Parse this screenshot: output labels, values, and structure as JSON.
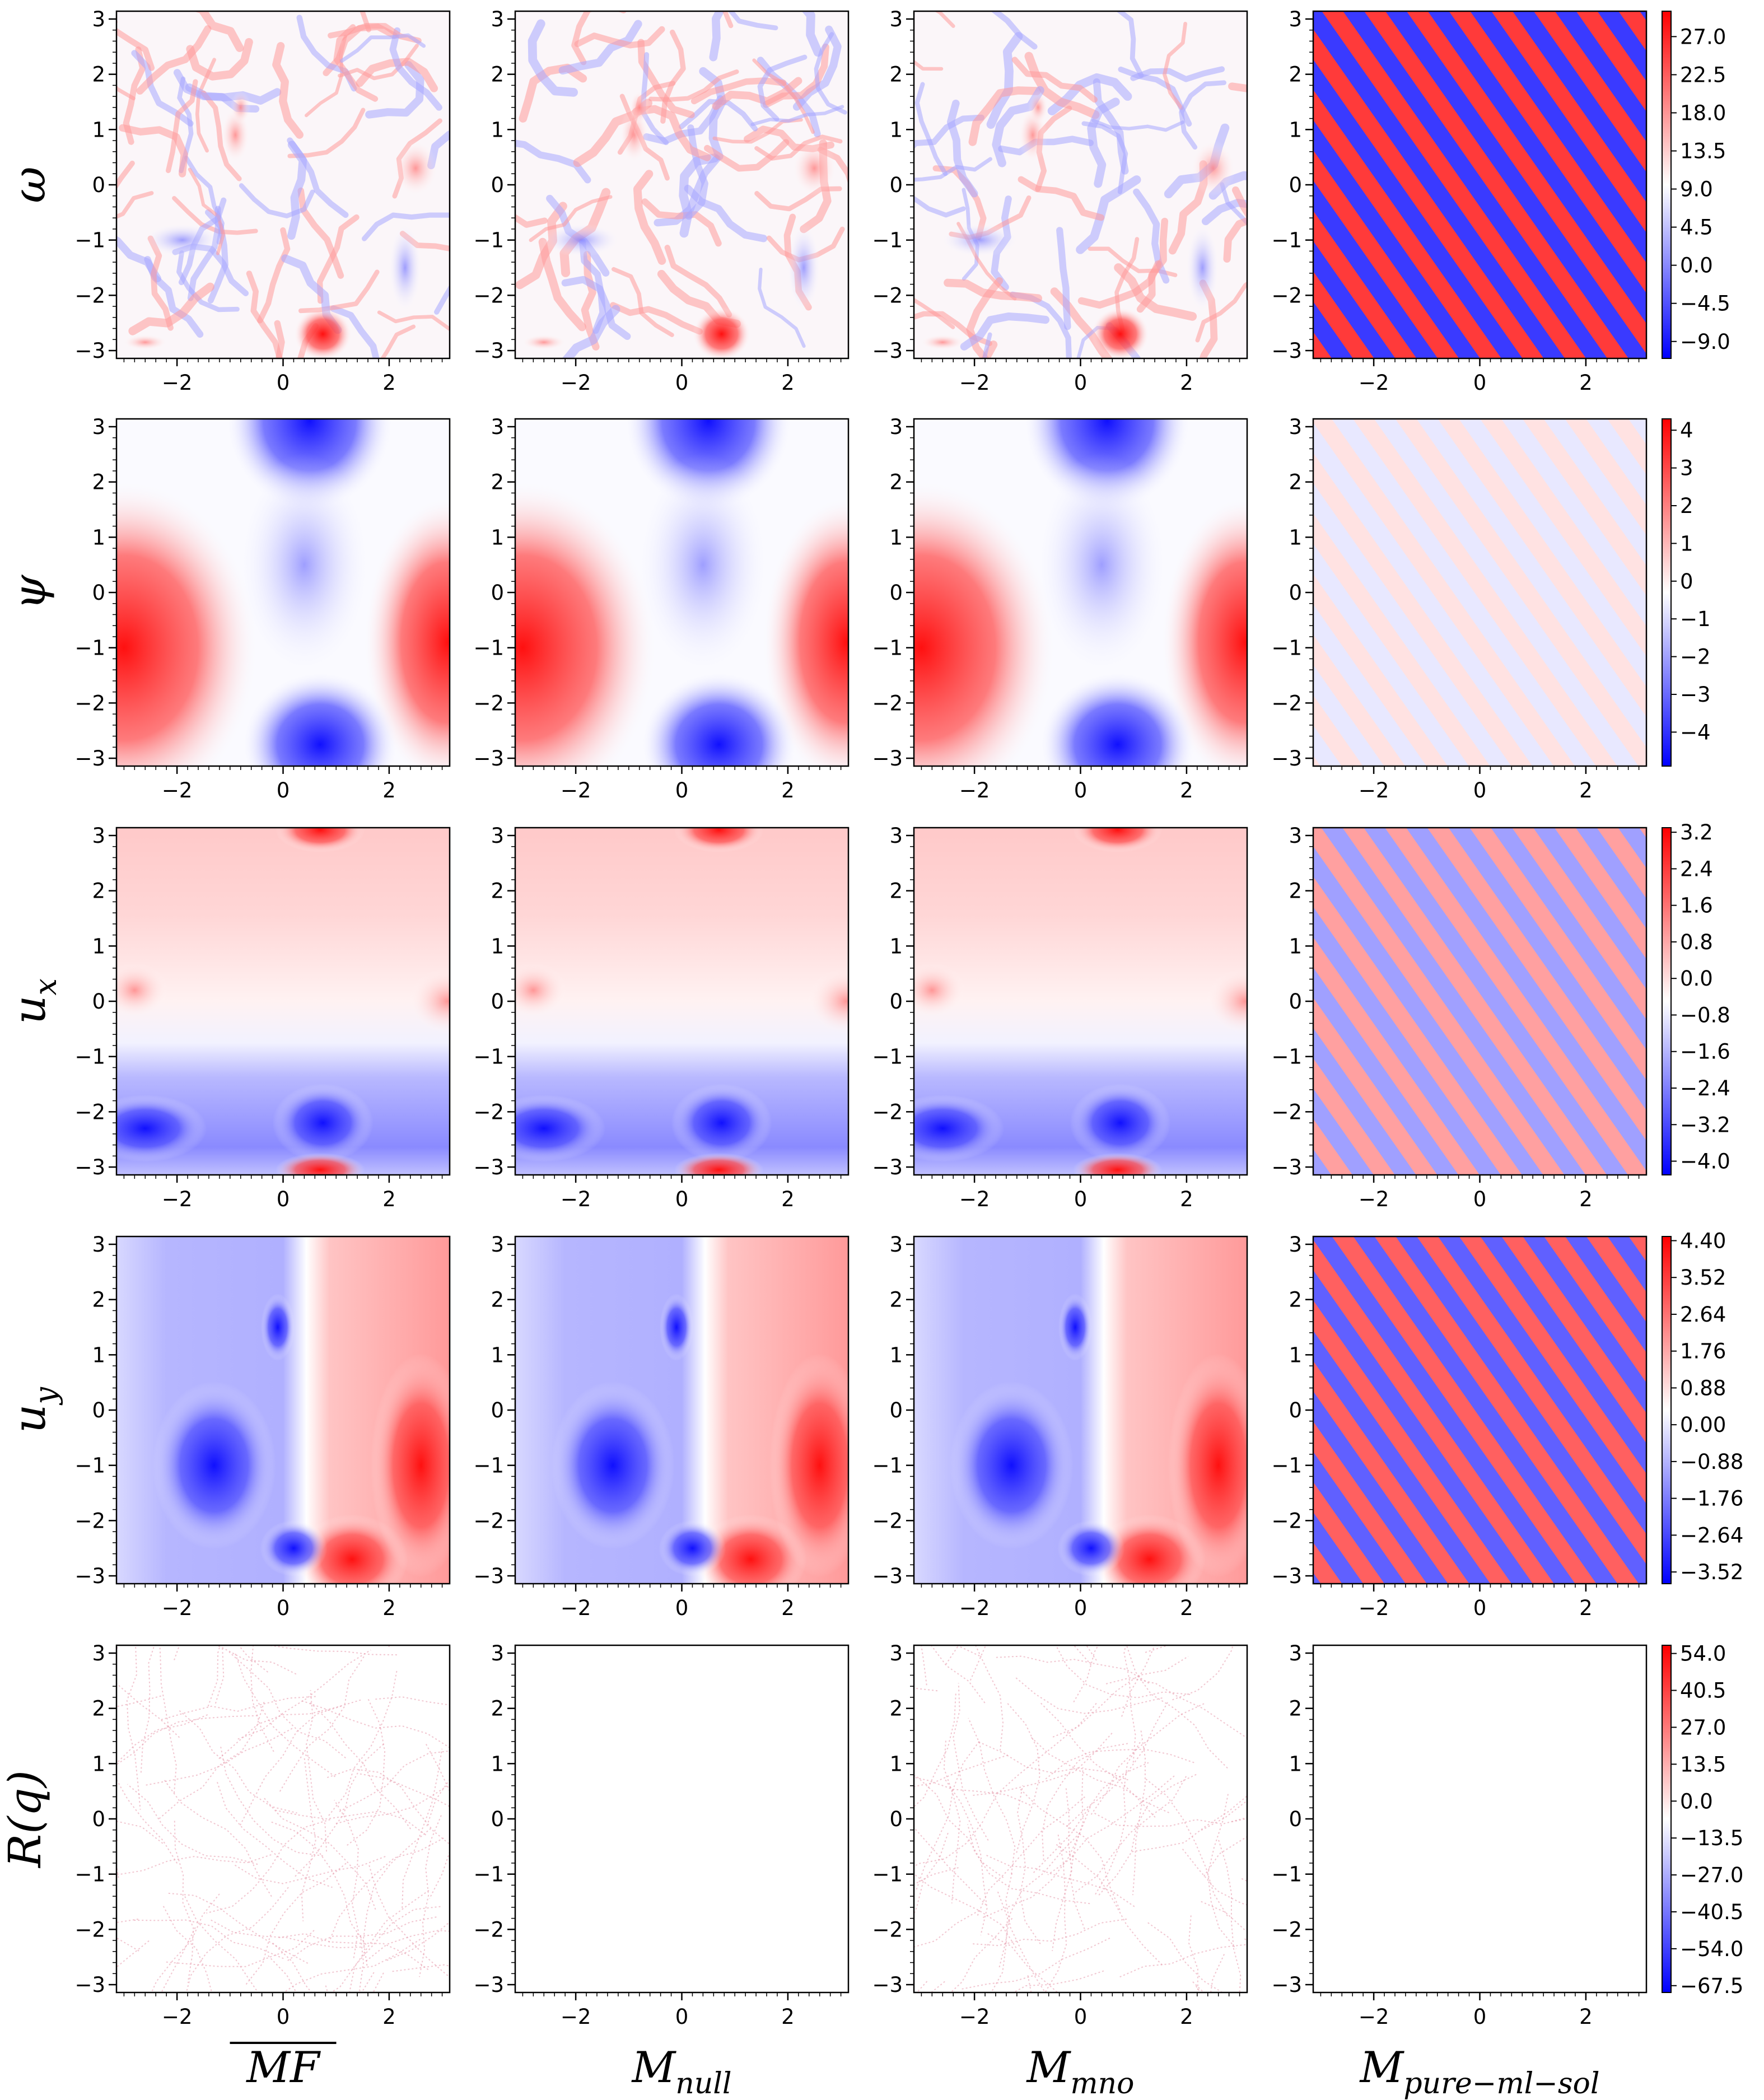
{
  "figure": {
    "columns": [
      {
        "label_main": "MF",
        "label_sub": "",
        "overline": true
      },
      {
        "label_main": "M",
        "label_sub": "null",
        "overline": false
      },
      {
        "label_main": "M",
        "label_sub": "mno",
        "overline": false
      },
      {
        "label_main": "M",
        "label_sub": "pure−ml−sol",
        "overline": false
      }
    ],
    "rows": [
      {
        "label_main": "ω",
        "label_sub": ""
      },
      {
        "label_main": "ψ",
        "label_sub": ""
      },
      {
        "label_main": "u",
        "label_sub": "x"
      },
      {
        "label_main": "u",
        "label_sub": "y"
      },
      {
        "label_main": "R(q)",
        "label_sub": ""
      }
    ]
  },
  "chart_data": [
    {
      "type": "heatmap",
      "row": "omega",
      "x_range": [
        -3.14,
        3.14
      ],
      "y_range": [
        -3.14,
        3.14
      ],
      "xticks": [
        "−2",
        "0",
        "2"
      ],
      "yticks": [
        "−3",
        "−2",
        "−1",
        "0",
        "1",
        "2",
        "3"
      ],
      "colormap": "bwr",
      "colorbar_ticks": [
        "27.0",
        "22.5",
        "18.0",
        "13.5",
        "9.0",
        "4.5",
        "0.0",
        "−4.5",
        "−9.0"
      ],
      "colorbar_range": [
        -11,
        30
      ],
      "panels": [
        "turbulent vorticity field with filaments and a strong positive vortex near (0.7,−2.7)",
        "turbulent vorticity field, noisier",
        "turbulent vorticity field",
        "diagonal stripes of alternating sign"
      ]
    },
    {
      "type": "heatmap",
      "row": "psi",
      "x_range": [
        -3.14,
        3.14
      ],
      "y_range": [
        -3.14,
        3.14
      ],
      "xticks": [
        "−2",
        "0",
        "2"
      ],
      "yticks": [
        "−3",
        "−2",
        "−1",
        "0",
        "1",
        "2",
        "3"
      ],
      "colormap": "bwr",
      "colorbar_ticks": [
        "4",
        "3",
        "2",
        "1",
        "0",
        "−1",
        "−2",
        "−3",
        "−4"
      ],
      "colorbar_range": [
        -4.9,
        4.3
      ],
      "panels": [
        "large-scale dipole: positive lobes left/right, negative lobes top/bottom",
        "large-scale dipole",
        "large-scale dipole",
        "faint diagonal stripes"
      ]
    },
    {
      "type": "heatmap",
      "row": "ux",
      "x_range": [
        -3.14,
        3.14
      ],
      "y_range": [
        -3.14,
        3.14
      ],
      "xticks": [
        "−2",
        "0",
        "2"
      ],
      "yticks": [
        "−3",
        "−2",
        "−1",
        "0",
        "1",
        "2",
        "3"
      ],
      "colormap": "bwr",
      "colorbar_ticks": [
        "3.2",
        "2.4",
        "1.6",
        "0.8",
        "0.0",
        "−0.8",
        "−1.6",
        "−2.4",
        "−3.2",
        "−4.0"
      ],
      "colorbar_range": [
        -4.3,
        3.3
      ],
      "panels": [
        "positive upper band, negative lower band",
        "positive upper band, negative lower band",
        "positive upper band, negative lower band",
        "diagonal stripes"
      ]
    },
    {
      "type": "heatmap",
      "row": "uy",
      "x_range": [
        -3.14,
        3.14
      ],
      "y_range": [
        -3.14,
        3.14
      ],
      "xticks": [
        "−2",
        "0",
        "2"
      ],
      "yticks": [
        "−3",
        "−2",
        "−1",
        "0",
        "1",
        "2",
        "3"
      ],
      "colormap": "bwr",
      "colorbar_ticks": [
        "4.40",
        "3.52",
        "2.64",
        "1.76",
        "0.88",
        "0.00",
        "−0.88",
        "−1.76",
        "−2.64",
        "−3.52"
      ],
      "colorbar_range": [
        -3.8,
        4.5
      ],
      "panels": [
        "negative left region, positive right region",
        "negative left, positive right",
        "negative left, positive right",
        "diagonal stripes"
      ]
    },
    {
      "type": "heatmap",
      "row": "R(q)",
      "x_range": [
        -3.14,
        3.14
      ],
      "y_range": [
        -3.14,
        3.14
      ],
      "xticks": [
        "−2",
        "0",
        "2"
      ],
      "yticks": [
        "−3",
        "−2",
        "−1",
        "0",
        "1",
        "2",
        "3"
      ],
      "colormap": "bwr",
      "colorbar_ticks": [
        "54.0",
        "40.5",
        "27.0",
        "13.5",
        "0.0",
        "−13.5",
        "−27.0",
        "−40.5",
        "−54.0",
        "−67.5"
      ],
      "colorbar_range": [
        -70,
        57
      ],
      "panels": [
        "faint small-scale residual texture",
        "near zero (blank)",
        "faint small-scale residual texture",
        "near zero (blank)"
      ]
    }
  ]
}
